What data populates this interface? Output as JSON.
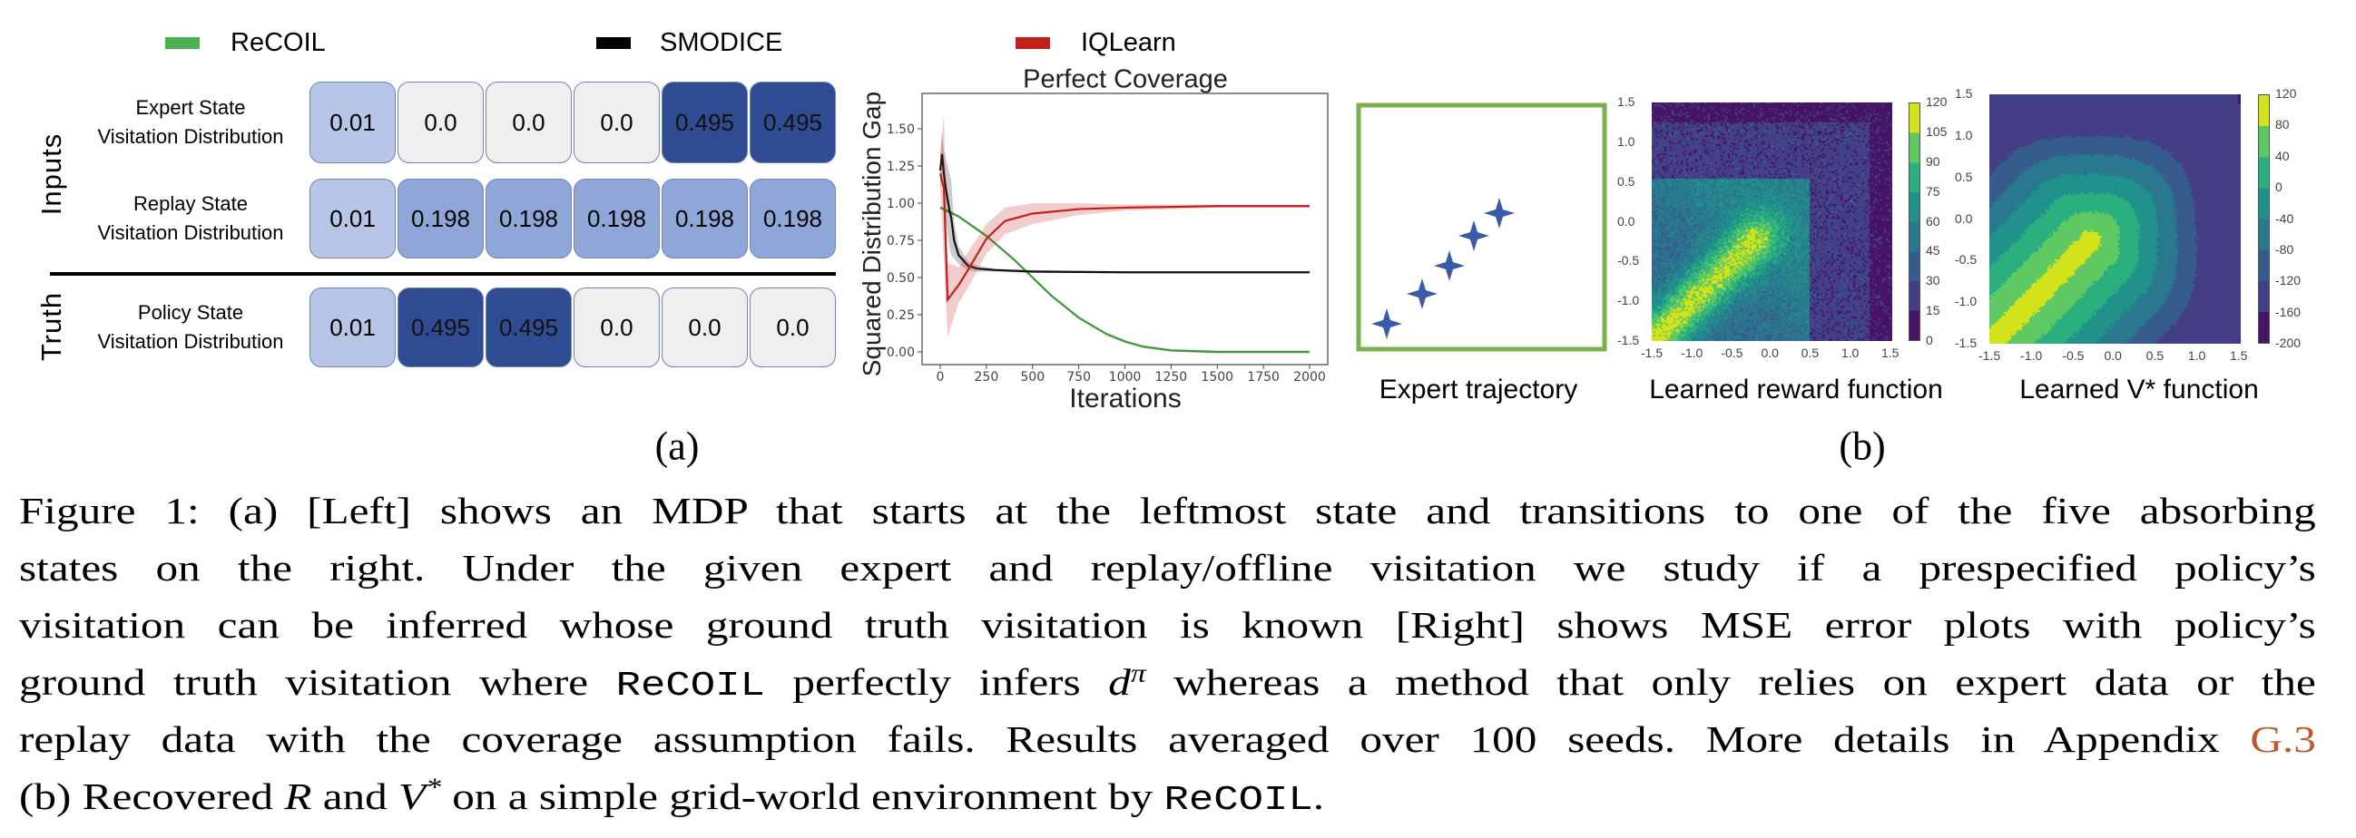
{
  "legend": [
    {
      "label": "ReCOIL",
      "color": "#4caf50"
    },
    {
      "label": "SMODICE",
      "color": "#000000"
    },
    {
      "label": "IQLearn",
      "color": "#c0201a"
    }
  ],
  "mdp_table": {
    "groups": [
      "Inputs",
      "Truth"
    ],
    "rows": [
      {
        "label_lines": [
          "Expert State",
          "Visitation Distribution"
        ],
        "values": [
          "0.01",
          "0.0",
          "0.0",
          "0.0",
          "0.495",
          "0.495"
        ]
      },
      {
        "label_lines": [
          "Replay State",
          "Visitation Distribution"
        ],
        "values": [
          "0.01",
          "0.198",
          "0.198",
          "0.198",
          "0.198",
          "0.198"
        ]
      },
      {
        "label_lines": [
          "Policy State",
          "Visitation Distribution"
        ],
        "values": [
          "0.01",
          "0.495",
          "0.495",
          "0.0",
          "0.0",
          "0.0"
        ]
      }
    ],
    "cell_colors": {
      "0.0": "#efefef",
      "0.01": "#b7c6e6",
      "0.198": "#8fa6d9",
      "0.495": "#2f4c92"
    }
  },
  "chart_data": [
    {
      "type": "line",
      "title": "Perfect Coverage",
      "xlabel": "Iterations",
      "ylabel": "Squared Distribution Gap",
      "xlim": [
        -100,
        2100
      ],
      "ylim": [
        -0.08,
        1.7
      ],
      "xticks": [
        "0",
        "250",
        "500",
        "750",
        "1000",
        "1250",
        "1500",
        "1750",
        "2000"
      ],
      "yticks": [
        "0.00",
        "0.25",
        "0.50",
        "0.75",
        "1.00",
        "1.25",
        "1.50"
      ],
      "grid": false,
      "series": [
        {
          "name": "ReCOIL",
          "color": "#3d9a3d",
          "x": [
            0,
            100,
            250,
            400,
            500,
            600,
            750,
            900,
            1000,
            1100,
            1250,
            1500,
            2000
          ],
          "y": [
            0.97,
            0.91,
            0.78,
            0.62,
            0.5,
            0.38,
            0.23,
            0.12,
            0.07,
            0.035,
            0.01,
            0.0,
            0.0
          ],
          "band": 0.01
        },
        {
          "name": "SMODICE",
          "color": "#111111",
          "x": [
            0,
            10,
            20,
            30,
            50,
            60,
            75,
            100,
            150,
            200,
            300,
            500,
            1000,
            2000
          ],
          "y": [
            1.22,
            1.33,
            1.2,
            1.1,
            0.95,
            0.9,
            0.75,
            0.65,
            0.58,
            0.56,
            0.55,
            0.54,
            0.535,
            0.535
          ],
          "band": [
            0.12,
            0.15,
            0.15,
            0.2,
            0.25,
            0.25,
            0.12,
            0.06,
            0.03,
            0.02,
            0.01,
            0.01,
            0.005,
            0.005
          ]
        },
        {
          "name": "IQLearn",
          "color": "#c0201a",
          "x": [
            0,
            20,
            40,
            100,
            150,
            250,
            350,
            500,
            750,
            1000,
            1500,
            2000
          ],
          "y": [
            1.2,
            1.1,
            0.35,
            0.45,
            0.55,
            0.76,
            0.88,
            0.93,
            0.96,
            0.97,
            0.98,
            0.98
          ],
          "band": [
            0.1,
            0.5,
            0.25,
            0.12,
            0.12,
            0.1,
            0.09,
            0.07,
            0.04,
            0.02,
            0.01,
            0.01
          ]
        }
      ]
    },
    {
      "type": "heatmap",
      "title": "Learned reward function",
      "xticks": [
        "-1.5",
        "-1.0",
        "-0.5",
        "0.0",
        "0.5",
        "1.0",
        "1.5"
      ],
      "yticks": [
        "1.5",
        "1.0",
        "0.5",
        "0.0",
        "-0.5",
        "-1.0",
        "-1.5"
      ],
      "colorbar_ticks": [
        "120",
        "105",
        "90",
        "75",
        "60",
        "45",
        "30",
        "15",
        "0"
      ],
      "colormap": "viridis"
    },
    {
      "type": "heatmap",
      "title": "Learned V* function",
      "xticks": [
        "-1.5",
        "-1.0",
        "-0.5",
        "0.0",
        "0.5",
        "1.0",
        "1.5"
      ],
      "yticks": [
        "1.5",
        "1.0",
        "0.5",
        "0.0",
        "-0.5",
        "-1.0",
        "-1.5"
      ],
      "colorbar_ticks": [
        "120",
        "80",
        "40",
        "0",
        "-40",
        "-80",
        "-120",
        "-160",
        "-200"
      ],
      "colormap": "viridis"
    }
  ],
  "expert_panel": {
    "label": "Expert trajectory",
    "star_color": "#3a5ba8",
    "box_color": "#7bb04f",
    "star_icon": "four-point-star-icon"
  },
  "figure_labels": {
    "a": "(a)",
    "b": "(b)"
  },
  "caption": {
    "lines": [
      [
        {
          "t": "Figure 1: (a) [Left] shows an MDP that starts at the leftmost state and transitions to one of the five absorbing"
        }
      ],
      [
        {
          "t": "states on the right.  Under the given expert and replay/offline visitation we study if a prespecified policy’s"
        }
      ],
      [
        {
          "t": "visitation can be inferred whose ground truth visitation is known [Right] shows MSE error plots with policy’s"
        }
      ],
      [
        {
          "t": "ground truth visitation where "
        },
        {
          "t": "ReCOIL",
          "s": "code"
        },
        {
          "t": " perfectly infers "
        },
        {
          "t": "d",
          "s": "math"
        },
        {
          "t": "π",
          "s": "sup"
        },
        {
          "t": " whereas a method that only relies on expert data or the"
        }
      ],
      [
        {
          "t": "replay data with the coverage assumption fails. Results averaged over 100 seeds. More details in Appendix "
        },
        {
          "t": "G.3",
          "s": "link"
        }
      ],
      [
        {
          "t": "(b) Recovered "
        },
        {
          "t": "R",
          "s": "math"
        },
        {
          "t": " and "
        },
        {
          "t": "V",
          "s": "math"
        },
        {
          "t": "*",
          "s": "sup"
        },
        {
          "t": " on a simple grid-world environment by "
        },
        {
          "t": "ReCOIL",
          "s": "code"
        },
        {
          "t": "."
        }
      ]
    ]
  }
}
